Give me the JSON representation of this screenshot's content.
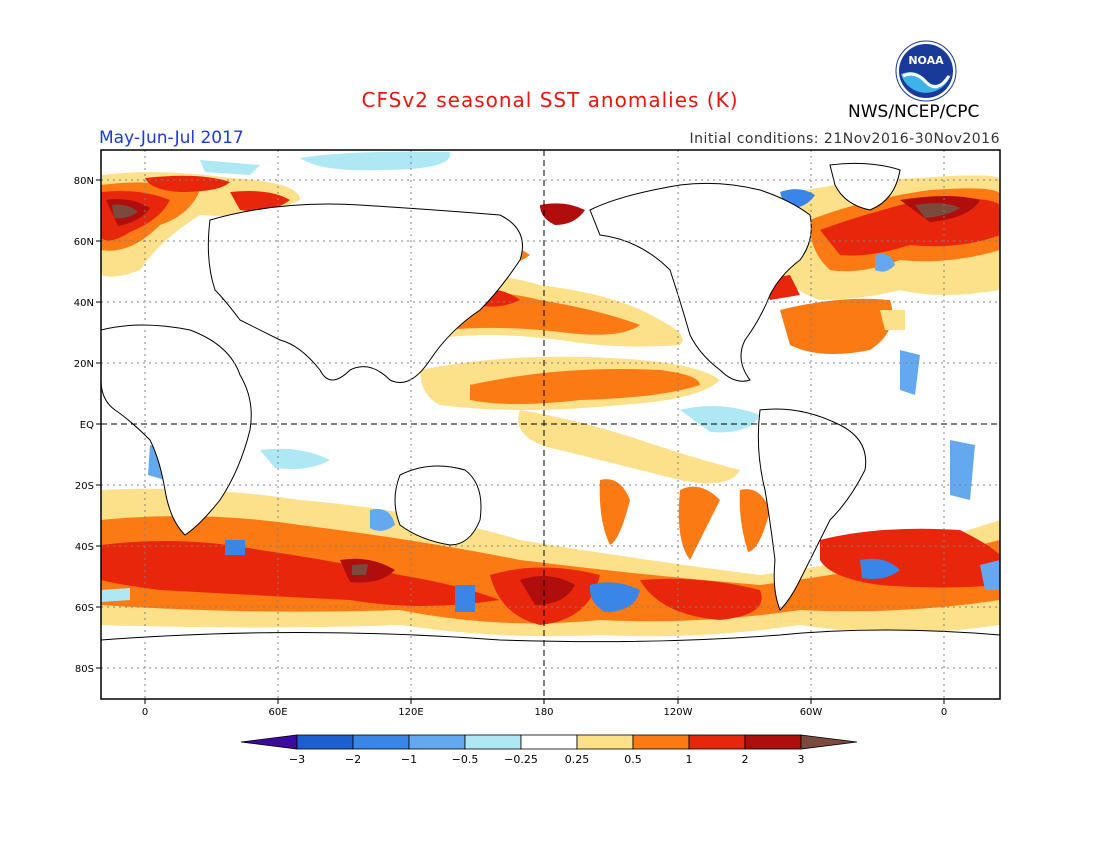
{
  "title": "CFSv2 seasonal SST anomalies (K)",
  "agency": "NWS/NCEP/CPC",
  "logo_text": "NOAA",
  "period": "May-Jun-Jul 2017",
  "initial_conditions": "Initial conditions: 21Nov2016-30Nov2016",
  "lat_labels": [
    "80N",
    "60N",
    "40N",
    "20N",
    "EQ",
    "20S",
    "40S",
    "60S",
    "80S"
  ],
  "lon_labels": [
    "0",
    "60E",
    "120E",
    "180",
    "120W",
    "60W",
    "0"
  ],
  "colorbar": {
    "labels": [
      "-3",
      "-2",
      "-1",
      "-0.5",
      "-0.25",
      "0.25",
      "0.5",
      "1",
      "2",
      "3"
    ],
    "colors": [
      "#3d0aa0",
      "#1e5fd0",
      "#3a86e8",
      "#64a8f0",
      "#aee8f5",
      "#ffffff",
      "#fce08a",
      "#fb7a14",
      "#e8260c",
      "#b00d0d",
      "#7a4a3c"
    ]
  }
}
